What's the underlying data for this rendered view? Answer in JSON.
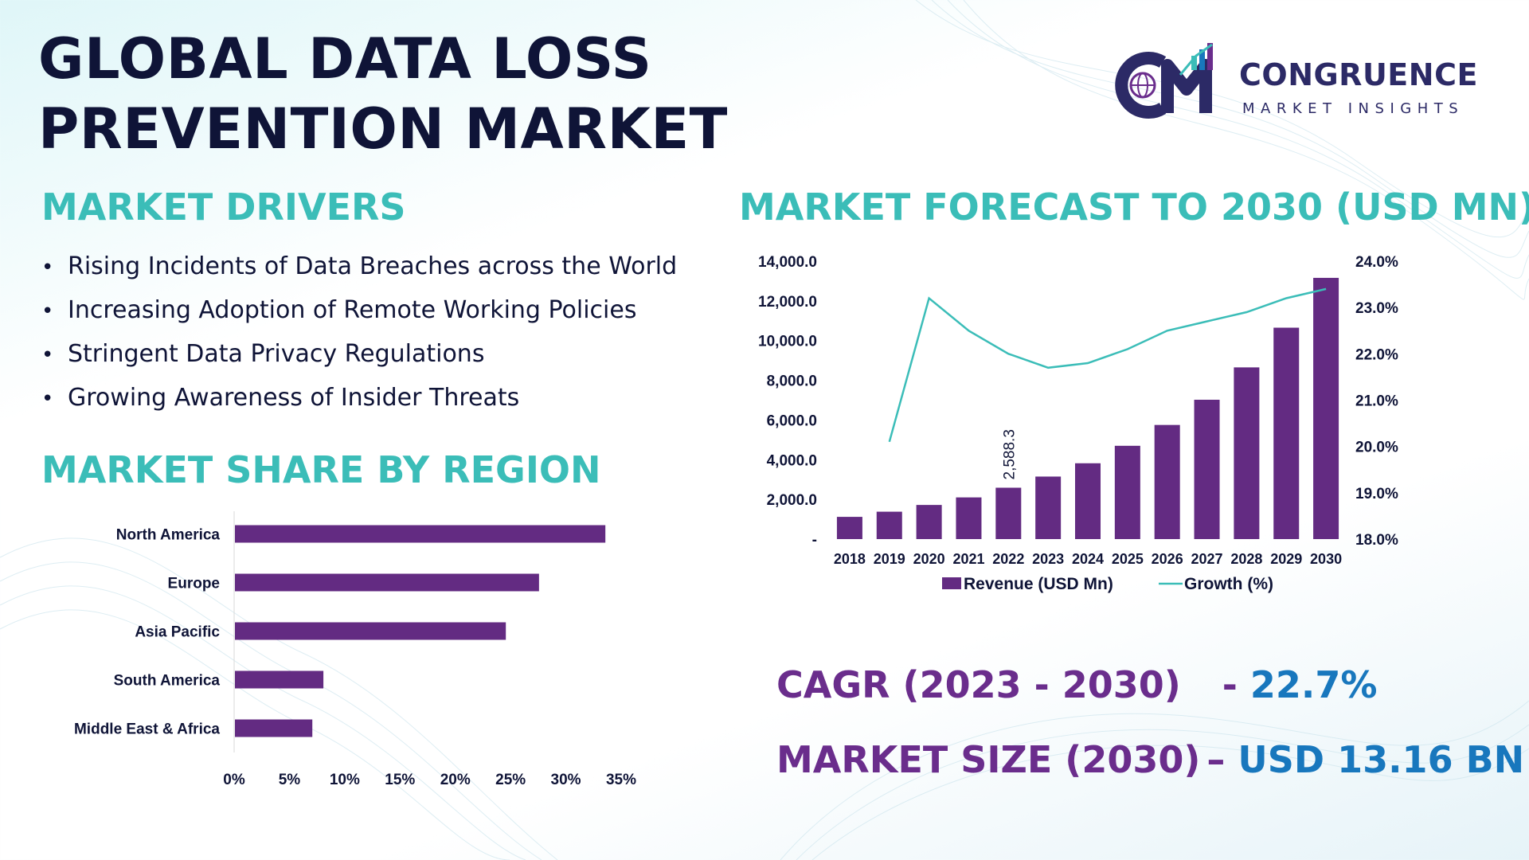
{
  "title": "GLOBAL DATA LOSS PREVENTION MARKET",
  "brand": {
    "logo_letters": "CM",
    "name": "CONGRUENCE",
    "tagline": "MARKET INSIGHTS"
  },
  "drivers": {
    "heading": "MARKET DRIVERS",
    "bullet": "•",
    "items": [
      "Rising Incidents of Data Breaches across the World",
      "Increasing Adoption of Remote Working Policies",
      "Stringent Data Privacy Regulations",
      "Growing Awareness of Insider Threats"
    ]
  },
  "region": {
    "heading": "MARKET SHARE BY REGION"
  },
  "forecast": {
    "heading": "MARKET FORECAST TO 2030 (USD MN)"
  },
  "stats": {
    "cagr_label": "CAGR (2023 - 2030)",
    "cagr_sep": "-",
    "cagr_value": "22.7%",
    "size_label": "MARKET SIZE (2030)",
    "size_sep": "–",
    "size_value": "USD 13.16 BN"
  },
  "colors": {
    "bar": "#632b82",
    "line": "#3bbdb8",
    "title": "#0f1437",
    "section": "#3bbdb8",
    "stat_label": "#6a2d8c",
    "stat_value": "#1877bd"
  },
  "chart_data": [
    {
      "type": "bar",
      "orientation": "horizontal",
      "title": "MARKET SHARE BY REGION",
      "categories": [
        "North America",
        "Europe",
        "Asia Pacific",
        "South America",
        "Middle East & Africa"
      ],
      "values": [
        33.5,
        27.5,
        24.5,
        8.0,
        7.0
      ],
      "xlim": [
        0,
        35
      ],
      "xticks": [
        "0%",
        "5%",
        "10%",
        "15%",
        "20%",
        "25%",
        "30%",
        "35%"
      ],
      "grid": false
    },
    {
      "type": "bar+line",
      "title": "MARKET FORECAST TO 2030 (USD MN)",
      "categories": [
        "2018",
        "2019",
        "2020",
        "2021",
        "2022",
        "2023",
        "2024",
        "2025",
        "2026",
        "2027",
        "2028",
        "2029",
        "2030"
      ],
      "series": [
        {
          "name": "Revenue (USD Mn)",
          "type": "bar",
          "axis": "left",
          "values": [
            1120,
            1380,
            1720,
            2100,
            2588.3,
            3150,
            3820,
            4700,
            5750,
            7020,
            8650,
            10650,
            13160
          ]
        },
        {
          "name": "Growth (%)",
          "type": "line",
          "axis": "right",
          "values": [
            null,
            20.1,
            23.2,
            22.5,
            22.0,
            21.7,
            21.8,
            22.1,
            22.5,
            22.7,
            22.9,
            23.2,
            23.4
          ]
        }
      ],
      "left_ylim": [
        0,
        14000
      ],
      "left_ticks": [
        "-",
        "2,000.0",
        "4,000.0",
        "6,000.0",
        "8,000.0",
        "10,000.0",
        "12,000.0",
        "14,000.0"
      ],
      "right_ylim": [
        18,
        24
      ],
      "right_ticks": [
        "18.0%",
        "19.0%",
        "20.0%",
        "21.0%",
        "22.0%",
        "23.0%",
        "24.0%"
      ],
      "data_labels": [
        {
          "category": "2022",
          "text": "2,588.3"
        }
      ],
      "legend": "bottom",
      "grid": false
    }
  ]
}
